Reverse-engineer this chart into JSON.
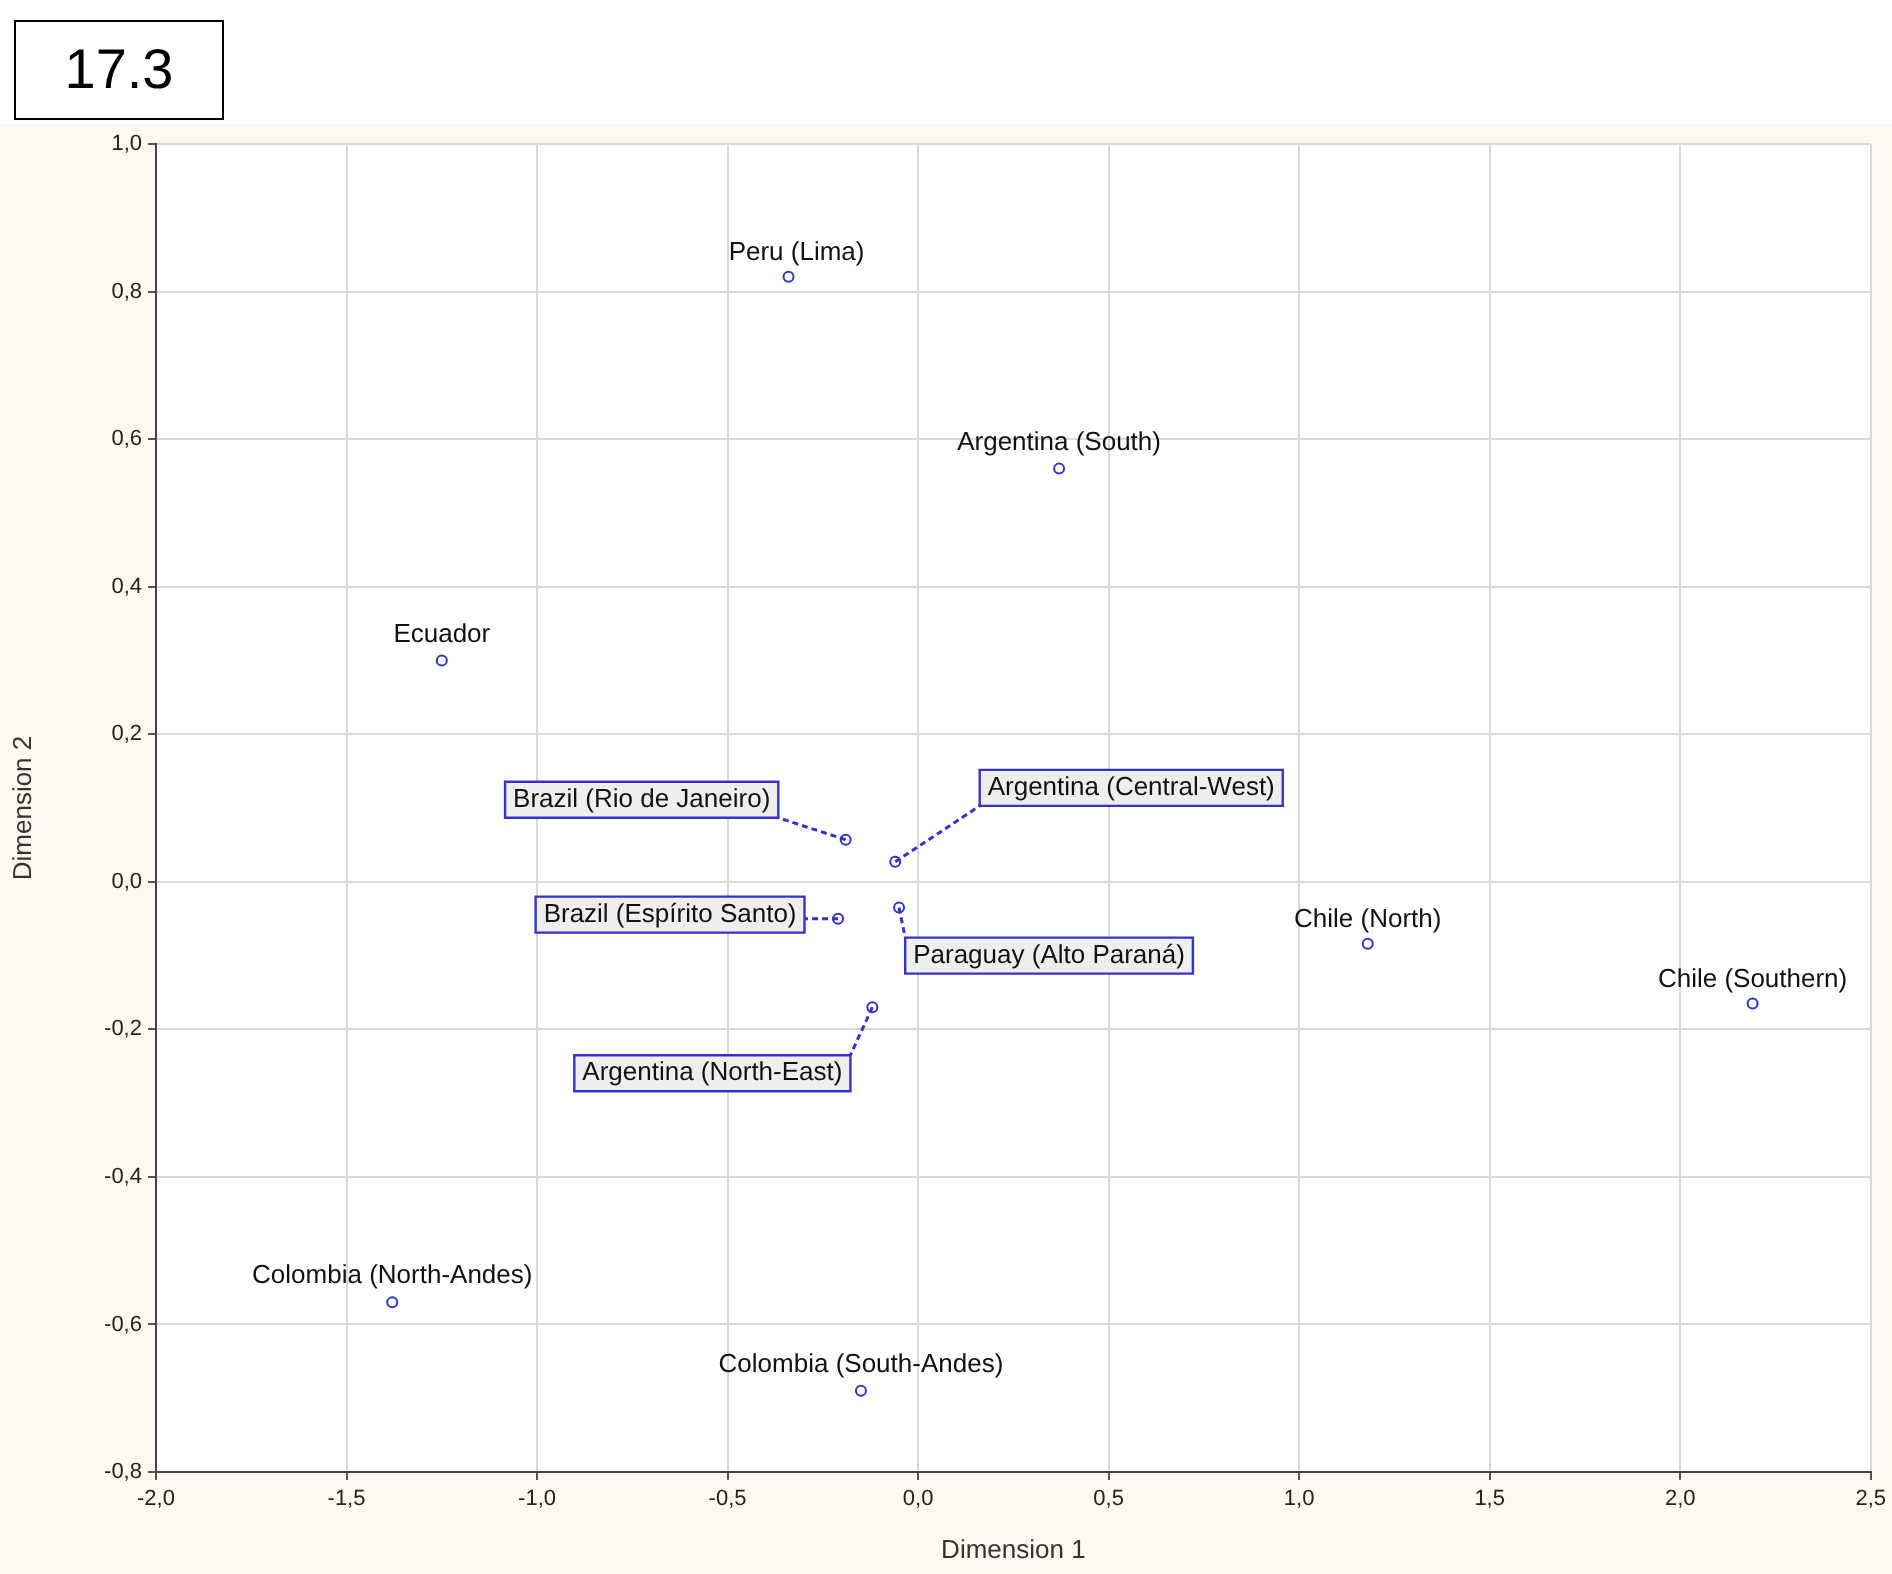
{
  "chart_data": {
    "type": "scatter",
    "title": "17.3",
    "xlabel": "Dimension 1",
    "ylabel": "Dimension 2",
    "x": [
      -0.34,
      0.37,
      -1.25,
      -0.19,
      -0.06,
      -0.21,
      -0.05,
      -0.12,
      1.18,
      2.19,
      -1.38,
      -0.15
    ],
    "series": [
      {
        "color": "#3333cc",
        "values": [
          0.82,
          0.56,
          0.3,
          0.057,
          0.027,
          -0.05,
          -0.035,
          -0.17,
          -0.084,
          -0.165,
          -0.57,
          -0.69
        ]
      }
    ],
    "annotations": [
      {
        "text": "Peru (Lima)",
        "x": -0.34,
        "y": 0.82
      },
      {
        "text": "Argentina (South)",
        "x": 0.37,
        "y": 0.56
      },
      {
        "text": "Ecuador",
        "x": -1.25,
        "y": 0.3
      },
      {
        "text": "Brazil (Rio de Janeiro)",
        "x": -0.19,
        "y": 0.057
      },
      {
        "text": "Argentina (Central-West)",
        "x": -0.06,
        "y": 0.027
      },
      {
        "text": "Brazil (Espírito Santo)",
        "x": -0.21,
        "y": -0.05
      },
      {
        "text": "Paraguay (Alto Paraná)",
        "x": -0.05,
        "y": -0.035
      },
      {
        "text": "Argentina (North-East)",
        "x": -0.12,
        "y": -0.17
      },
      {
        "text": "Chile (North)",
        "x": 1.18,
        "y": -0.084
      },
      {
        "text": "Chile (Southern)",
        "x": 2.19,
        "y": -0.165
      },
      {
        "text": "Colombia (North-Andes)",
        "x": -1.38,
        "y": -0.57
      },
      {
        "text": "Colombia (South-Andes)",
        "x": -0.15,
        "y": -0.69
      }
    ],
    "xlim": [
      -2,
      2.5
    ],
    "xticks": [
      {
        "value": -2,
        "label": "-2,0"
      },
      {
        "value": -1.5,
        "label": "-1,5"
      },
      {
        "value": -1,
        "label": "-1,0"
      },
      {
        "value": -0.5,
        "label": "-0,5"
      },
      {
        "value": 0,
        "label": "0,0"
      },
      {
        "value": 0.5,
        "label": "0,5"
      },
      {
        "value": 1,
        "label": "1,0"
      },
      {
        "value": 1.5,
        "label": "1,5"
      },
      {
        "value": 2,
        "label": "2,0"
      },
      {
        "value": 2.5,
        "label": "2,5"
      }
    ],
    "ylim": [
      -0.8,
      1
    ],
    "yticks": [
      {
        "value": -0.8,
        "label": "-0,8"
      },
      {
        "value": -0.6,
        "label": "-0,6"
      },
      {
        "value": -0.4,
        "label": "-0,4"
      },
      {
        "value": -0.2,
        "label": "-0,2"
      },
      {
        "value": 0,
        "label": "0,0"
      },
      {
        "value": 0.2,
        "label": "0,2"
      },
      {
        "value": 0.4,
        "label": "0,4"
      },
      {
        "value": 0.6,
        "label": "0,6"
      },
      {
        "value": 0.8,
        "label": "0,8"
      },
      {
        "value": 1,
        "label": "1,0"
      }
    ],
    "grid": true,
    "legend": false,
    "marker": "circle"
  }
}
